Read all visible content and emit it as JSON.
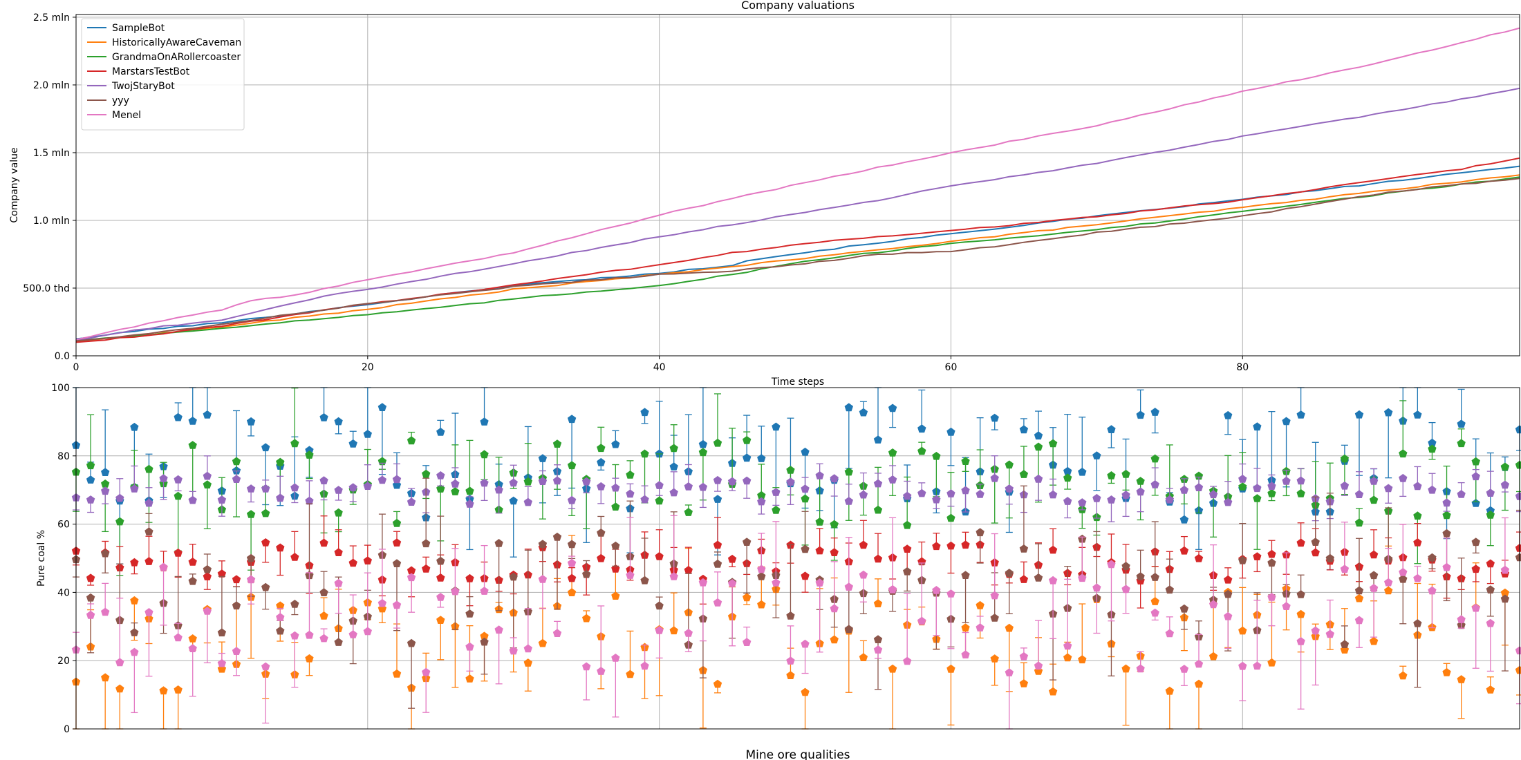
{
  "chart_data": [
    {
      "type": "line",
      "title": "Company valuations",
      "xlabel": "Time steps",
      "ylabel": "Company value",
      "xlim": [
        0,
        99
      ],
      "ylim": [
        0,
        2520000
      ],
      "x_ticks": [
        0,
        20,
        40,
        60,
        80
      ],
      "x_tick_labels": [
        "0",
        "20",
        "40",
        "60",
        "80"
      ],
      "y_ticks": [
        0,
        500000,
        1000000,
        1500000,
        2000000,
        2500000
      ],
      "y_tick_labels": [
        "0.0",
        "500.0 thd",
        "1.0 mln",
        "1.5 mln",
        "2.0 mln",
        "2.5 mln"
      ],
      "grid": true,
      "legend_position": "top-left",
      "series": [
        {
          "name": "SampleBot",
          "color": "#1f77b4",
          "anchors": [
            [
              0,
              125000
            ],
            [
              5,
              195000
            ],
            [
              10,
              245000
            ],
            [
              20,
              380000
            ],
            [
              30,
              520000
            ],
            [
              40,
              610000
            ],
            [
              45,
              670000
            ],
            [
              46,
              705000
            ],
            [
              55,
              835000
            ],
            [
              60,
              900000
            ],
            [
              65,
              965000
            ],
            [
              70,
              1030000
            ],
            [
              80,
              1155000
            ],
            [
              90,
              1285000
            ],
            [
              99,
              1400000
            ]
          ]
        },
        {
          "name": "HistoricallyAwareCaveman",
          "color": "#ff7f0e",
          "anchors": [
            [
              0,
              105000
            ],
            [
              5,
              155000
            ],
            [
              10,
              215000
            ],
            [
              20,
              345000
            ],
            [
              30,
              490000
            ],
            [
              40,
              600000
            ],
            [
              50,
              720000
            ],
            [
              60,
              845000
            ],
            [
              70,
              970000
            ],
            [
              80,
              1095000
            ],
            [
              90,
              1225000
            ],
            [
              99,
              1335000
            ]
          ]
        },
        {
          "name": "GrandmaOnARollercoaster",
          "color": "#2ca02c",
          "anchors": [
            [
              0,
              115000
            ],
            [
              5,
              155000
            ],
            [
              10,
              205000
            ],
            [
              20,
              305000
            ],
            [
              25,
              355000
            ],
            [
              30,
              420000
            ],
            [
              40,
              520000
            ],
            [
              45,
              600000
            ],
            [
              50,
              700000
            ],
            [
              60,
              830000
            ],
            [
              70,
              930000
            ],
            [
              80,
              1065000
            ],
            [
              90,
              1200000
            ],
            [
              99,
              1320000
            ]
          ]
        },
        {
          "name": "MarstarsTestBot",
          "color": "#d62728",
          "anchors": [
            [
              0,
              100000
            ],
            [
              5,
              150000
            ],
            [
              10,
              220000
            ],
            [
              20,
              385000
            ],
            [
              30,
              520000
            ],
            [
              35,
              600000
            ],
            [
              40,
              670000
            ],
            [
              45,
              760000
            ],
            [
              50,
              830000
            ],
            [
              55,
              880000
            ],
            [
              60,
              925000
            ],
            [
              65,
              975000
            ],
            [
              70,
              1030000
            ],
            [
              80,
              1150000
            ],
            [
              90,
              1310000
            ],
            [
              95,
              1380000
            ],
            [
              99,
              1460000
            ]
          ]
        },
        {
          "name": "TwojStaryBot",
          "color": "#9467bd",
          "anchors": [
            [
              0,
              115000
            ],
            [
              5,
              205000
            ],
            [
              10,
              265000
            ],
            [
              17,
              440000
            ],
            [
              20,
              490000
            ],
            [
              30,
              680000
            ],
            [
              40,
              880000
            ],
            [
              50,
              1060000
            ],
            [
              55,
              1150000
            ],
            [
              60,
              1255000
            ],
            [
              70,
              1420000
            ],
            [
              80,
              1620000
            ],
            [
              90,
              1800000
            ],
            [
              99,
              1975000
            ]
          ]
        },
        {
          "name": "yyy",
          "color": "#8c564b",
          "anchors": [
            [
              0,
              110000
            ],
            [
              5,
              165000
            ],
            [
              10,
              235000
            ],
            [
              20,
              385000
            ],
            [
              30,
              510000
            ],
            [
              40,
              600000
            ],
            [
              45,
              625000
            ],
            [
              50,
              680000
            ],
            [
              55,
              750000
            ],
            [
              60,
              770000
            ],
            [
              65,
              835000
            ],
            [
              70,
              910000
            ],
            [
              75,
              970000
            ],
            [
              80,
              1030000
            ],
            [
              90,
              1210000
            ],
            [
              99,
              1310000
            ]
          ]
        },
        {
          "name": "Menel",
          "color": "#e377c2",
          "anchors": [
            [
              0,
              120000
            ],
            [
              5,
              240000
            ],
            [
              10,
              340000
            ],
            [
              12,
              405000
            ],
            [
              15,
              450000
            ],
            [
              20,
              560000
            ],
            [
              30,
              760000
            ],
            [
              35,
              900000
            ],
            [
              40,
              1040000
            ],
            [
              45,
              1160000
            ],
            [
              50,
              1280000
            ],
            [
              60,
              1500000
            ],
            [
              70,
              1700000
            ],
            [
              80,
              1950000
            ],
            [
              90,
              2180000
            ],
            [
              99,
              2420000
            ]
          ]
        }
      ]
    },
    {
      "type": "scatter",
      "xlabel": "Mine ore qualities",
      "ylabel": "Pure coal %",
      "xlim": [
        0,
        99
      ],
      "ylim": [
        0,
        100
      ],
      "y_ticks": [
        0,
        20,
        40,
        60,
        80,
        100
      ],
      "y_tick_labels": [
        "0",
        "20",
        "40",
        "60",
        "80",
        "100"
      ],
      "grid": true,
      "marker": "pentagon with vertical error bars",
      "series": [
        {
          "name": "SampleBot",
          "color": "#1f77b4",
          "center": 78,
          "spread": 12,
          "seed": 11
        },
        {
          "name": "HistoricallyAwareCaveman",
          "color": "#ff7f0e",
          "center": 26,
          "spread": 11,
          "seed": 23
        },
        {
          "name": "GrandmaOnARollercoaster",
          "color": "#2ca02c",
          "center": 72,
          "spread": 9,
          "seed": 37
        },
        {
          "name": "MarstarsTestBot",
          "color": "#d62728",
          "center": 49,
          "spread": 4,
          "seed": 41
        },
        {
          "name": "TwojStaryBot",
          "color": "#9467bd",
          "center": 70,
          "spread": 3,
          "seed": 53
        },
        {
          "name": "yyy",
          "color": "#8c564b",
          "center": 41,
          "spread": 12,
          "seed": 67
        },
        {
          "name": "Menel",
          "color": "#e377c2",
          "center": 33,
          "spread": 12,
          "seed": 79
        }
      ]
    }
  ]
}
